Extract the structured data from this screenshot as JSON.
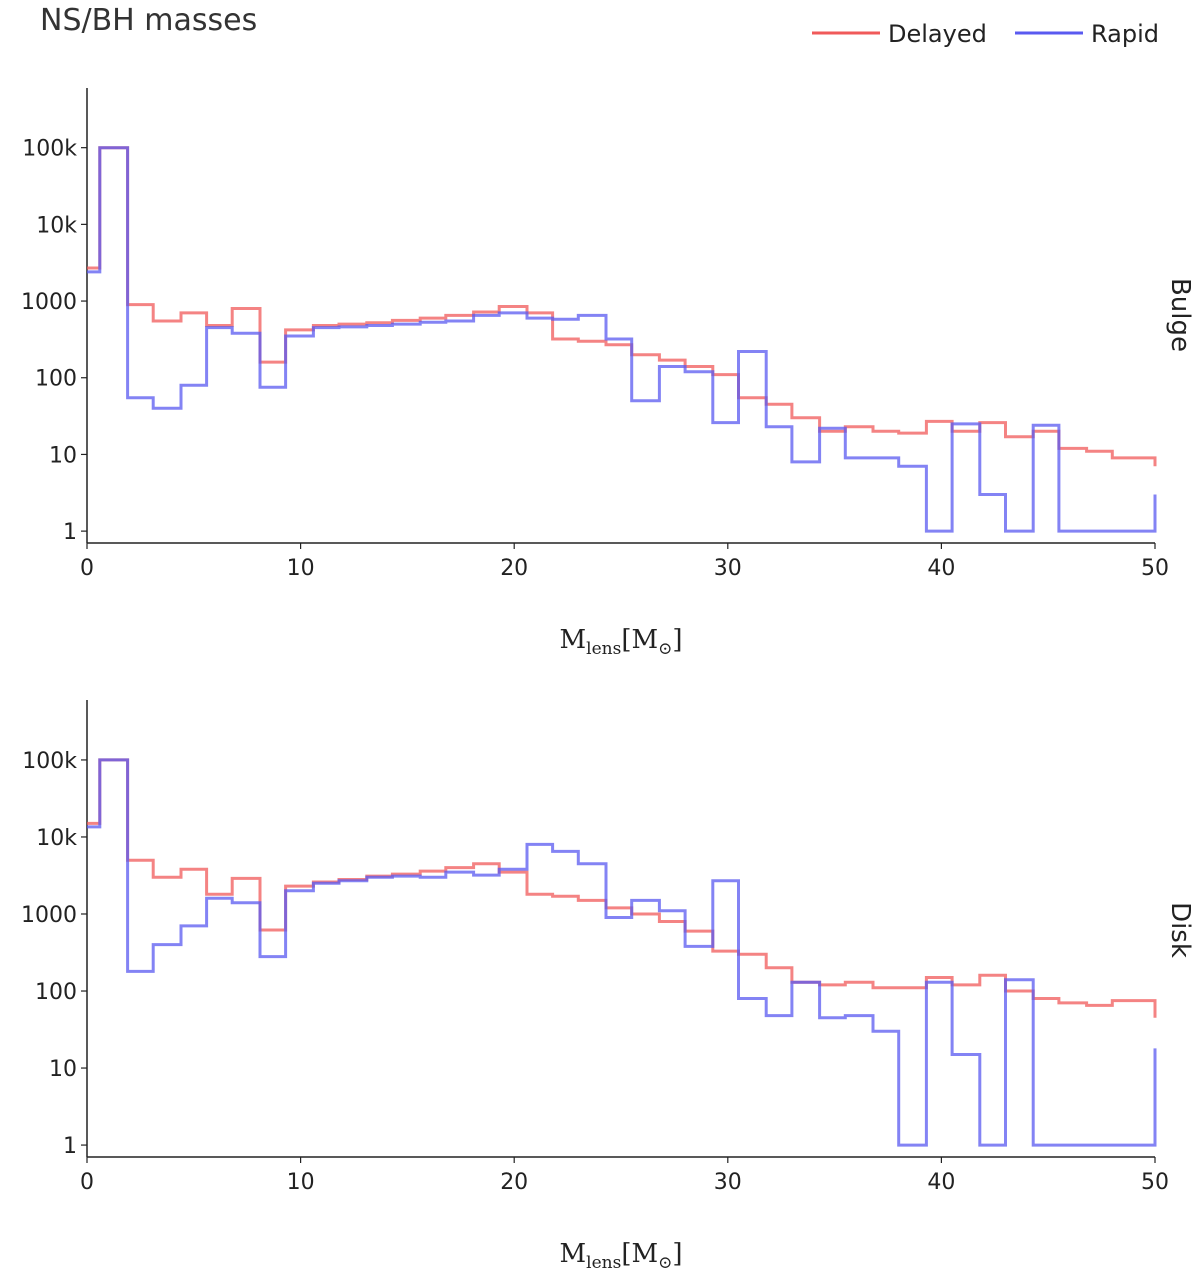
{
  "title": "NS/BH masses",
  "legend": [
    {
      "name": "Delayed",
      "color": "#f05a5a"
    },
    {
      "name": "Rapid",
      "color": "#5a5af0"
    }
  ],
  "chart_data": [
    {
      "type": "step-histogram",
      "panel": "Bulge",
      "xlabel": "M_lens [M_sun]",
      "xlabel_main": "M",
      "xlabel_sub": "lens",
      "xlabel_unit_open": "[M",
      "xlabel_unit_sub": "⊙",
      "xlabel_unit_close": "]",
      "xlim": [
        0,
        50
      ],
      "ylog": true,
      "ylim": [
        0.7,
        600000
      ],
      "xticks": [
        0,
        10,
        20,
        30,
        40,
        50
      ],
      "yticks": [
        1,
        10,
        100,
        1000,
        10000,
        100000
      ],
      "yticklabels": [
        "1",
        "10",
        "100",
        "1000",
        "10k",
        "100k"
      ],
      "bin_edges": [
        0,
        0.6,
        1.9,
        3.1,
        4.4,
        5.6,
        6.8,
        8.1,
        9.3,
        10.6,
        11.8,
        13.1,
        14.3,
        15.6,
        16.8,
        18.1,
        19.3,
        20.6,
        21.8,
        23.0,
        24.3,
        25.5,
        26.8,
        28.0,
        29.3,
        30.5,
        31.8,
        33.0,
        34.3,
        35.5,
        36.8,
        38.0,
        39.3,
        40.5,
        41.8,
        43.0,
        44.3,
        45.5,
        46.8,
        48.0,
        50.0
      ],
      "series": [
        {
          "name": "Delayed",
          "color": "#f05a5a",
          "values": [
            2700,
            100000,
            900,
            550,
            700,
            480,
            800,
            160,
            420,
            480,
            500,
            520,
            560,
            600,
            650,
            720,
            850,
            700,
            320,
            300,
            270,
            200,
            170,
            140,
            110,
            55,
            45,
            30,
            20,
            23,
            20,
            19,
            27,
            20,
            26,
            17,
            20,
            12,
            11,
            9,
            7
          ]
        },
        {
          "name": "Rapid",
          "color": "#5a5af0",
          "values": [
            2400,
            100000,
            55,
            40,
            80,
            450,
            380,
            75,
            350,
            450,
            460,
            480,
            500,
            530,
            550,
            650,
            700,
            600,
            580,
            650,
            320,
            50,
            140,
            120,
            26,
            220,
            23,
            8,
            22,
            9,
            9,
            7,
            1,
            25,
            3,
            1,
            24,
            1,
            1,
            1,
            3
          ]
        }
      ]
    },
    {
      "type": "step-histogram",
      "panel": "Disk",
      "xlabel": "M_lens [M_sun]",
      "xlabel_main": "M",
      "xlabel_sub": "lens",
      "xlabel_unit_open": "[M",
      "xlabel_unit_sub": "⊙",
      "xlabel_unit_close": "]",
      "xlim": [
        0,
        50
      ],
      "ylog": true,
      "ylim": [
        0.7,
        600000
      ],
      "xticks": [
        0,
        10,
        20,
        30,
        40,
        50
      ],
      "yticks": [
        1,
        10,
        100,
        1000,
        10000,
        100000
      ],
      "yticklabels": [
        "1",
        "10",
        "100",
        "1000",
        "10k",
        "100k"
      ],
      "bin_edges": [
        0,
        0.6,
        1.9,
        3.1,
        4.4,
        5.6,
        6.8,
        8.1,
        9.3,
        10.6,
        11.8,
        13.1,
        14.3,
        15.6,
        16.8,
        18.1,
        19.3,
        20.6,
        21.8,
        23.0,
        24.3,
        25.5,
        26.8,
        28.0,
        29.3,
        30.5,
        31.8,
        33.0,
        34.3,
        35.5,
        36.8,
        38.0,
        39.3,
        40.5,
        41.8,
        43.0,
        44.3,
        45.5,
        46.8,
        48.0,
        50.0
      ],
      "series": [
        {
          "name": "Delayed",
          "color": "#f05a5a",
          "values": [
            15000,
            100000,
            5000,
            3000,
            3800,
            1800,
            2900,
            620,
            2300,
            2600,
            2800,
            3100,
            3300,
            3600,
            4000,
            4500,
            3500,
            1800,
            1700,
            1500,
            1200,
            1000,
            800,
            600,
            330,
            300,
            200,
            130,
            120,
            130,
            110,
            110,
            150,
            120,
            160,
            100,
            80,
            70,
            65,
            75,
            45
          ]
        },
        {
          "name": "Rapid",
          "color": "#5a5af0",
          "values": [
            13500,
            100000,
            180,
            400,
            700,
            1600,
            1400,
            280,
            2000,
            2500,
            2700,
            3000,
            3100,
            3000,
            3500,
            3200,
            3800,
            8000,
            6500,
            4500,
            900,
            1500,
            1100,
            380,
            2700,
            80,
            48,
            130,
            45,
            48,
            30,
            1,
            130,
            15,
            1,
            140,
            1,
            1,
            1,
            1,
            18
          ]
        }
      ]
    }
  ]
}
